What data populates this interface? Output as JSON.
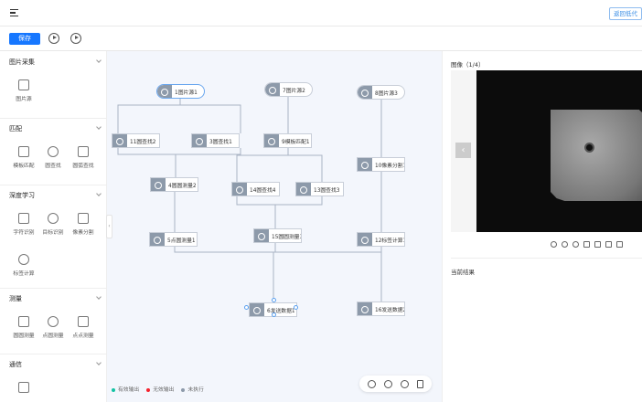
{
  "header": {
    "back_label": "返回低代"
  },
  "toolbar": {
    "save_label": "保存"
  },
  "sidebar": {
    "sections": [
      {
        "title": "图片采集",
        "items": [
          "图片源"
        ]
      },
      {
        "title": "匹配",
        "items": [
          "模板匹配",
          "圆查找",
          "圆弧查找"
        ]
      },
      {
        "title": "深度学习",
        "items": [
          "字符识别",
          "目标识别",
          "像素分割",
          "标签计算"
        ]
      },
      {
        "title": "测量",
        "items": [
          "圆圆测量",
          "点圆测量",
          "点点测量"
        ]
      },
      {
        "title": "通信",
        "items": [
          ""
        ]
      }
    ]
  },
  "nodes": [
    "1图片源1",
    "7图片源2",
    "8图片源3",
    "11圆查找2",
    "3圆查找1",
    "9模板匹配1",
    "10像素分割1",
    "4圆圆测量2",
    "14圆查找4",
    "13圆查找3",
    "5点圆测量1",
    "15圆圆测量3",
    "12标签计算1",
    "6发送数据1",
    "16发送数据2"
  ],
  "legend": [
    {
      "label": "有效输出",
      "color": "#13c2a3"
    },
    {
      "label": "无效输出",
      "color": "#f5222d"
    },
    {
      "label": "未执行",
      "color": "#8d9aaa"
    }
  ],
  "panel": {
    "image_title": "图像（1/4）",
    "result_title": "当前结果"
  }
}
